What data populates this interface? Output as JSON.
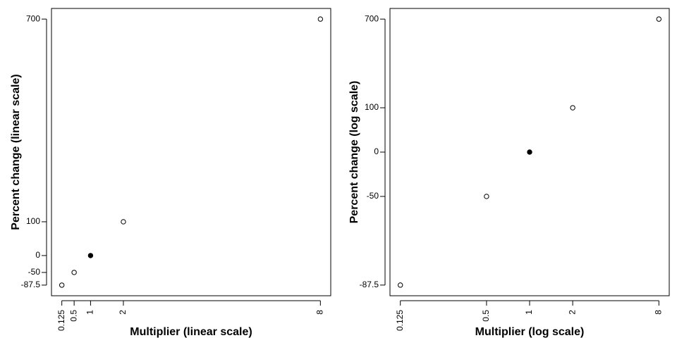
{
  "chart_data": [
    {
      "type": "scatter",
      "xlabel": "Multiplier (linear scale)",
      "ylabel": "Percent change (linear scale)",
      "x": [
        0.125,
        0.5,
        1,
        2,
        8
      ],
      "values": [
        -87.5,
        -50,
        0,
        100,
        700
      ],
      "color": "#000000",
      "point_fill": [
        "#ffffff",
        "#ffffff",
        "#000000",
        "#ffffff",
        "#ffffff"
      ],
      "xlog": false,
      "ylog": false,
      "xlim": [
        -0.19,
        8.315
      ],
      "ylim": [
        -119,
        731.5
      ],
      "xticks": [
        0.125,
        0.5,
        1,
        2,
        8
      ],
      "yticks": [
        -87.5,
        -50,
        0,
        100,
        700
      ]
    },
    {
      "type": "scatter",
      "xlabel": "Multiplier (log scale)",
      "ylabel": "Percent change (log scale)",
      "x": [
        0.125,
        0.5,
        1,
        2,
        8
      ],
      "values": [
        0.125,
        0.5,
        1,
        2,
        8
      ],
      "color": "#000000",
      "point_fill": [
        "#ffffff",
        "#ffffff",
        "#000000",
        "#ffffff",
        "#ffffff"
      ],
      "xlog": true,
      "ylog": true,
      "xlim": [
        0.1058,
        9.45
      ],
      "ylim": [
        0.1058,
        9.45
      ],
      "xticks": [
        0.125,
        0.5,
        1,
        2,
        8
      ],
      "yticks": [
        {
          "value": 0.125,
          "label": "-87.5"
        },
        {
          "value": 0.5,
          "label": "-50"
        },
        {
          "value": 1,
          "label": "0"
        },
        {
          "value": 2,
          "label": "100"
        },
        {
          "value": 8,
          "label": "700"
        }
      ]
    }
  ]
}
